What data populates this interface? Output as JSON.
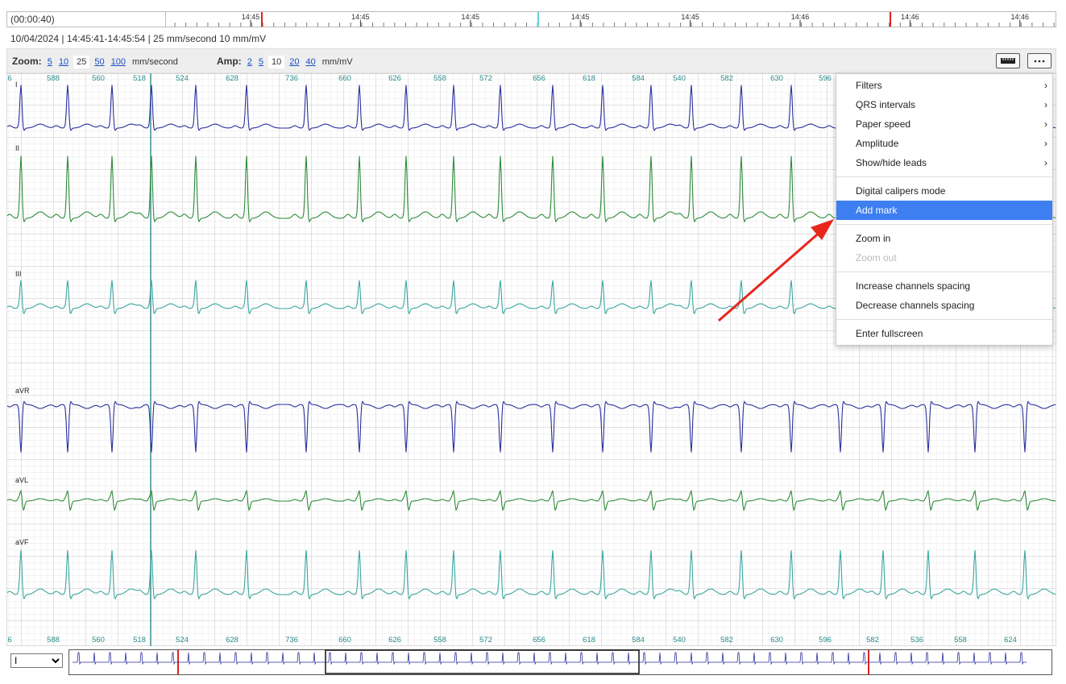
{
  "timeline": {
    "duration": "(00:00:40)",
    "tick_labels": [
      "14:45",
      "14:45",
      "14:45",
      "14:45",
      "14:45",
      "14:46",
      "14:46",
      "14:46"
    ]
  },
  "info": "10/04/2024 | 14:45:41-14:45:54 | 25 mm/second 10 mm/mV",
  "toolbar": {
    "zoom_label": "Zoom:",
    "zoom_options": [
      "5",
      "10",
      "25",
      "50",
      "100"
    ],
    "zoom_selected": 2,
    "zoom_unit": "mm/second",
    "amp_label": "Amp:",
    "amp_options": [
      "2",
      "5",
      "10",
      "20",
      "40"
    ],
    "amp_selected": 2,
    "amp_unit": "mm/mV"
  },
  "rr_intervals": [
    "6",
    "588",
    "560",
    "518",
    "524",
    "628",
    "736",
    "660",
    "626",
    "558",
    "572",
    "656",
    "618",
    "584",
    "540",
    "582",
    "630",
    "596",
    "582",
    "536",
    "558",
    "624"
  ],
  "leads": [
    "I",
    "II",
    "III",
    "aVR",
    "aVL",
    "aVF"
  ],
  "menu": {
    "groups": [
      [
        {
          "label": "Filters",
          "submenu": true
        },
        {
          "label": "QRS intervals",
          "submenu": true
        },
        {
          "label": "Paper speed",
          "submenu": true
        },
        {
          "label": "Amplitude",
          "submenu": true
        },
        {
          "label": "Show/hide leads",
          "submenu": true
        }
      ],
      [
        {
          "label": "Digital calipers mode"
        },
        {
          "label": "Add mark",
          "highlighted": true
        }
      ],
      [
        {
          "label": "Zoom in"
        },
        {
          "label": "Zoom out",
          "disabled": true
        }
      ],
      [
        {
          "label": "Increase channels spacing"
        },
        {
          "label": "Decrease channels spacing"
        }
      ],
      [
        {
          "label": "Enter fullscreen"
        }
      ]
    ]
  },
  "lead_select": "I"
}
